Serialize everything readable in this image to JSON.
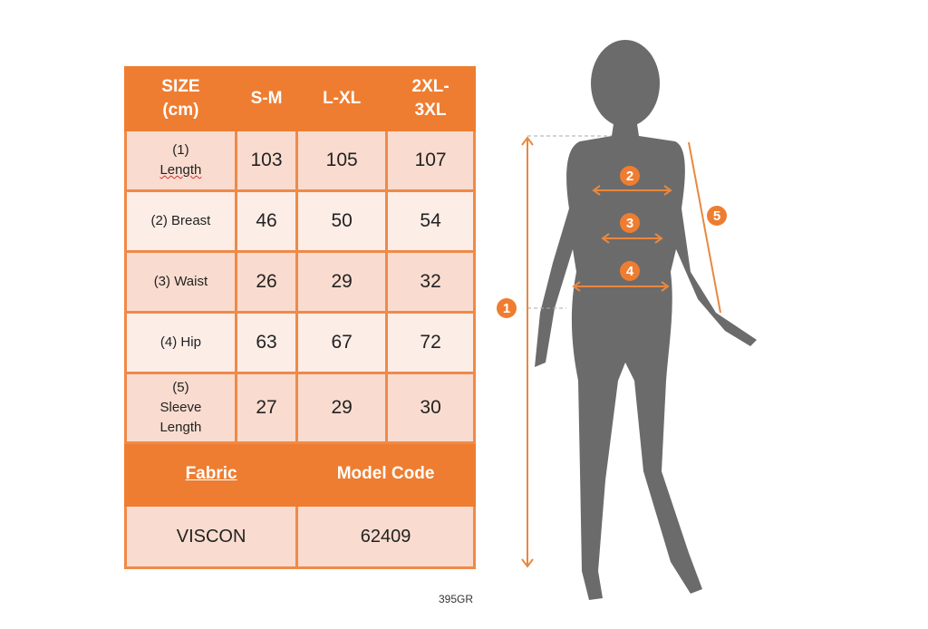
{
  "table": {
    "header": [
      "SIZE (cm)",
      "S-M",
      "L-XL",
      "2XL- 3XL"
    ],
    "header_lines": [
      [
        "SIZE",
        "(cm)"
      ],
      [
        "S-M"
      ],
      [
        "L-XL"
      ],
      [
        "2XL-",
        "3XL"
      ]
    ],
    "rows": [
      {
        "label_lines": [
          "(1)",
          "Length"
        ],
        "values": [
          "103",
          "105",
          "107"
        ]
      },
      {
        "label_lines": [
          "(2) Breast"
        ],
        "values": [
          "46",
          "50",
          "54"
        ]
      },
      {
        "label_lines": [
          "(3) Waist"
        ],
        "values": [
          "26",
          "29",
          "32"
        ]
      },
      {
        "label_lines": [
          "(4) Hip"
        ],
        "values": [
          "63",
          "67",
          "72"
        ]
      },
      {
        "label_lines": [
          "(5)",
          "Sleeve",
          "Length"
        ],
        "values": [
          "27",
          "29",
          "30"
        ]
      }
    ],
    "footer_header": [
      "Fabric",
      "Model Code"
    ],
    "footer_values": [
      "VISCON",
      "62409"
    ]
  },
  "product_code": "395GR",
  "figure": {
    "markers": [
      "1",
      "2",
      "3",
      "4",
      "5"
    ]
  },
  "colors": {
    "accent": "#ee7d31",
    "cell_dark": "#f9dccf",
    "cell_light": "#fcede7",
    "silhouette": "#6b6b6b"
  }
}
